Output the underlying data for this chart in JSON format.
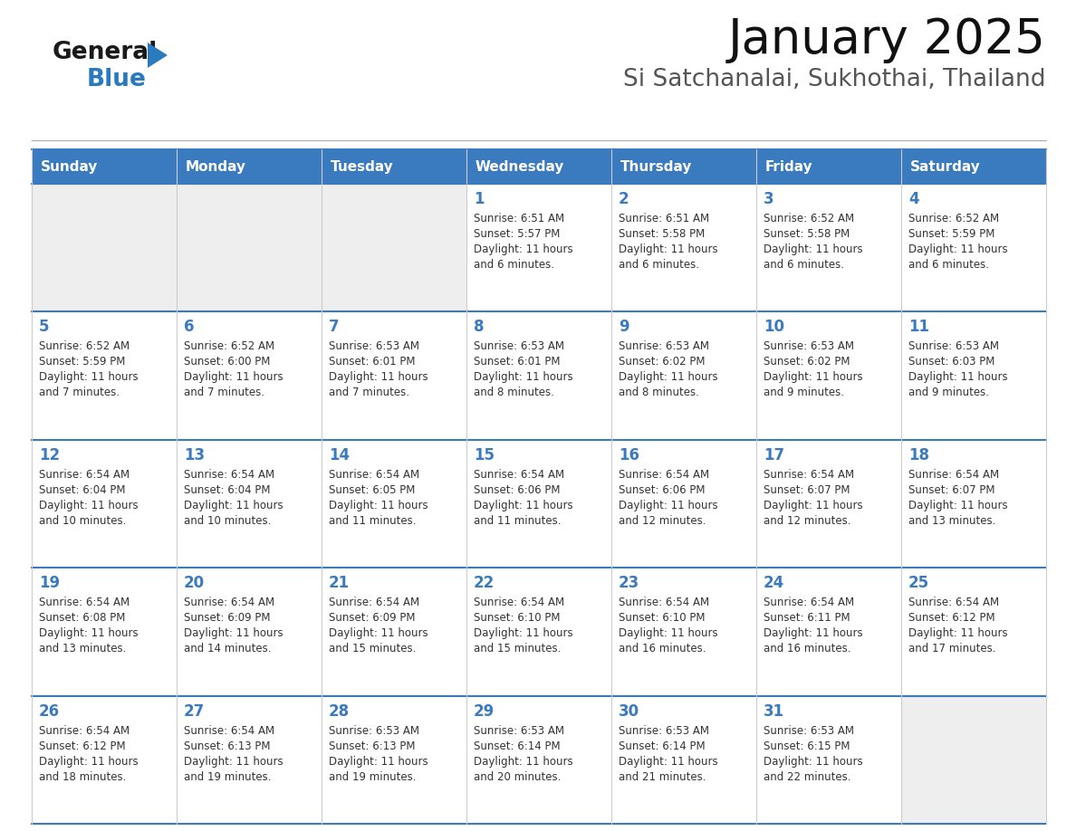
{
  "title": "January 2025",
  "subtitle": "Si Satchanalai, Sukhothai, Thailand",
  "header_color": "#3a7abf",
  "header_text_color": "#ffffff",
  "text_color": "#333333",
  "line_color_blue": "#3a7abf",
  "line_color_gray": "#cccccc",
  "empty_cell_color": "#eeeeee",
  "filled_cell_color": "#ffffff",
  "days_of_week": [
    "Sunday",
    "Monday",
    "Tuesday",
    "Wednesday",
    "Thursday",
    "Friday",
    "Saturday"
  ],
  "logo_color_general": "#1a1a1a",
  "logo_color_blue": "#2a7abf",
  "logo_triangle_color": "#2a7abf",
  "calendar": [
    [
      {
        "day": "",
        "sunrise": "",
        "sunset": "",
        "daylight": ""
      },
      {
        "day": "",
        "sunrise": "",
        "sunset": "",
        "daylight": ""
      },
      {
        "day": "",
        "sunrise": "",
        "sunset": "",
        "daylight": ""
      },
      {
        "day": "1",
        "sunrise": "6:51 AM",
        "sunset": "5:57 PM",
        "daylight": "11 hours and 6 minutes."
      },
      {
        "day": "2",
        "sunrise": "6:51 AM",
        "sunset": "5:58 PM",
        "daylight": "11 hours and 6 minutes."
      },
      {
        "day": "3",
        "sunrise": "6:52 AM",
        "sunset": "5:58 PM",
        "daylight": "11 hours and 6 minutes."
      },
      {
        "day": "4",
        "sunrise": "6:52 AM",
        "sunset": "5:59 PM",
        "daylight": "11 hours and 6 minutes."
      }
    ],
    [
      {
        "day": "5",
        "sunrise": "6:52 AM",
        "sunset": "5:59 PM",
        "daylight": "11 hours and 7 minutes."
      },
      {
        "day": "6",
        "sunrise": "6:52 AM",
        "sunset": "6:00 PM",
        "daylight": "11 hours and 7 minutes."
      },
      {
        "day": "7",
        "sunrise": "6:53 AM",
        "sunset": "6:01 PM",
        "daylight": "11 hours and 7 minutes."
      },
      {
        "day": "8",
        "sunrise": "6:53 AM",
        "sunset": "6:01 PM",
        "daylight": "11 hours and 8 minutes."
      },
      {
        "day": "9",
        "sunrise": "6:53 AM",
        "sunset": "6:02 PM",
        "daylight": "11 hours and 8 minutes."
      },
      {
        "day": "10",
        "sunrise": "6:53 AM",
        "sunset": "6:02 PM",
        "daylight": "11 hours and 9 minutes."
      },
      {
        "day": "11",
        "sunrise": "6:53 AM",
        "sunset": "6:03 PM",
        "daylight": "11 hours and 9 minutes."
      }
    ],
    [
      {
        "day": "12",
        "sunrise": "6:54 AM",
        "sunset": "6:04 PM",
        "daylight": "11 hours and 10 minutes."
      },
      {
        "day": "13",
        "sunrise": "6:54 AM",
        "sunset": "6:04 PM",
        "daylight": "11 hours and 10 minutes."
      },
      {
        "day": "14",
        "sunrise": "6:54 AM",
        "sunset": "6:05 PM",
        "daylight": "11 hours and 11 minutes."
      },
      {
        "day": "15",
        "sunrise": "6:54 AM",
        "sunset": "6:06 PM",
        "daylight": "11 hours and 11 minutes."
      },
      {
        "day": "16",
        "sunrise": "6:54 AM",
        "sunset": "6:06 PM",
        "daylight": "11 hours and 12 minutes."
      },
      {
        "day": "17",
        "sunrise": "6:54 AM",
        "sunset": "6:07 PM",
        "daylight": "11 hours and 12 minutes."
      },
      {
        "day": "18",
        "sunrise": "6:54 AM",
        "sunset": "6:07 PM",
        "daylight": "11 hours and 13 minutes."
      }
    ],
    [
      {
        "day": "19",
        "sunrise": "6:54 AM",
        "sunset": "6:08 PM",
        "daylight": "11 hours and 13 minutes."
      },
      {
        "day": "20",
        "sunrise": "6:54 AM",
        "sunset": "6:09 PM",
        "daylight": "11 hours and 14 minutes."
      },
      {
        "day": "21",
        "sunrise": "6:54 AM",
        "sunset": "6:09 PM",
        "daylight": "11 hours and 15 minutes."
      },
      {
        "day": "22",
        "sunrise": "6:54 AM",
        "sunset": "6:10 PM",
        "daylight": "11 hours and 15 minutes."
      },
      {
        "day": "23",
        "sunrise": "6:54 AM",
        "sunset": "6:10 PM",
        "daylight": "11 hours and 16 minutes."
      },
      {
        "day": "24",
        "sunrise": "6:54 AM",
        "sunset": "6:11 PM",
        "daylight": "11 hours and 16 minutes."
      },
      {
        "day": "25",
        "sunrise": "6:54 AM",
        "sunset": "6:12 PM",
        "daylight": "11 hours and 17 minutes."
      }
    ],
    [
      {
        "day": "26",
        "sunrise": "6:54 AM",
        "sunset": "6:12 PM",
        "daylight": "11 hours and 18 minutes."
      },
      {
        "day": "27",
        "sunrise": "6:54 AM",
        "sunset": "6:13 PM",
        "daylight": "11 hours and 19 minutes."
      },
      {
        "day": "28",
        "sunrise": "6:53 AM",
        "sunset": "6:13 PM",
        "daylight": "11 hours and 19 minutes."
      },
      {
        "day": "29",
        "sunrise": "6:53 AM",
        "sunset": "6:14 PM",
        "daylight": "11 hours and 20 minutes."
      },
      {
        "day": "30",
        "sunrise": "6:53 AM",
        "sunset": "6:14 PM",
        "daylight": "11 hours and 21 minutes."
      },
      {
        "day": "31",
        "sunrise": "6:53 AM",
        "sunset": "6:15 PM",
        "daylight": "11 hours and 22 minutes."
      },
      {
        "day": "",
        "sunrise": "",
        "sunset": "",
        "daylight": ""
      }
    ]
  ]
}
